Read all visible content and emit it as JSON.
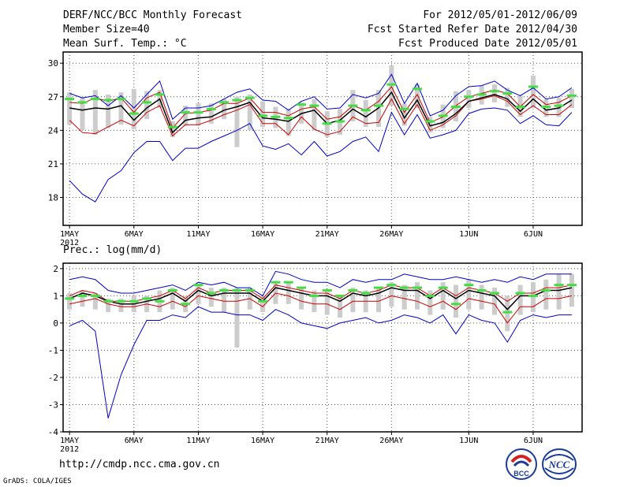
{
  "header": {
    "title": "DERF/NCC/BCC Monthly Forecast",
    "member_size": "Member Size=40",
    "variable": "Mean Surf. Temp.: °C",
    "period": "For 2012/05/01-2012/06/09",
    "start_date": "Fcst Started Refer Date 2012/04/30",
    "produced_date": "Fcst Produced Date 2012/05/01"
  },
  "footer": {
    "url": "http://cmdp.ncc.cma.gov.cn",
    "credit": "GrADS: COLA/IGES",
    "logo_bcc_text": "BCC",
    "logo_ncc_text": "NCC"
  },
  "colors": {
    "ensemble_mean": "#000000",
    "spread_inner": "#cc0000",
    "spread_outer": "#0000cc",
    "observed_marker": "#44dd44",
    "member_bar": "#cccccc",
    "grid": "#555555"
  },
  "chart_data": [
    {
      "type": "line",
      "title": "Mean Surf. Temp.: °C",
      "x_tick_labels": [
        "1MAY\n2012",
        "6MAY",
        "11MAY",
        "16MAY",
        "21MAY",
        "26MAY",
        "1JUN",
        "6JUN"
      ],
      "x_tick_days": [
        1,
        6,
        11,
        16,
        21,
        26,
        32,
        37
      ],
      "xlim": [
        0.5,
        40.8
      ],
      "ylim": [
        15.5,
        31
      ],
      "y_ticks": [
        18,
        21,
        24,
        27,
        30
      ],
      "grid": true,
      "days": [
        1,
        2,
        3,
        4,
        5,
        6,
        7,
        8,
        9,
        10,
        11,
        12,
        13,
        14,
        15,
        16,
        17,
        18,
        19,
        20,
        21,
        22,
        23,
        24,
        25,
        26,
        27,
        28,
        29,
        30,
        31,
        32,
        33,
        34,
        35,
        36,
        37,
        38,
        39,
        40
      ],
      "series": [
        {
          "name": "ensemble_max",
          "values": [
            27.3,
            26.9,
            27.1,
            26.2,
            27.1,
            26.0,
            27.2,
            28.4,
            25.0,
            26.0,
            26.0,
            26.2,
            26.8,
            27.4,
            27.7,
            26.7,
            26.6,
            25.8,
            26.6,
            27.0,
            25.9,
            26.0,
            27.2,
            26.9,
            27.3,
            29.0,
            26.4,
            28.2,
            25.3,
            25.8,
            27.1,
            27.9,
            28.0,
            28.4,
            27.6,
            27.1,
            27.8,
            26.8,
            27.0,
            27.8
          ]
        },
        {
          "name": "ensemble_p90",
          "values": [
            26.5,
            26.4,
            26.9,
            26.6,
            26.9,
            25.6,
            26.9,
            27.4,
            24.2,
            25.5,
            25.6,
            25.8,
            26.4,
            26.4,
            26.9,
            25.6,
            25.6,
            25.3,
            25.9,
            26.1,
            25.0,
            25.2,
            26.2,
            25.8,
            26.6,
            27.9,
            25.6,
            27.2,
            24.7,
            25.2,
            26.2,
            27.0,
            27.3,
            27.6,
            27.3,
            26.1,
            27.2,
            26.3,
            26.5,
            27.1
          ]
        },
        {
          "name": "ensemble_mean",
          "values": [
            26.0,
            25.8,
            26.0,
            25.9,
            26.2,
            24.9,
            26.0,
            26.8,
            23.8,
            24.9,
            25.1,
            25.2,
            25.8,
            26.1,
            26.5,
            25.1,
            25.0,
            24.8,
            25.5,
            25.8,
            24.6,
            24.9,
            25.9,
            25.2,
            26.0,
            27.4,
            25.1,
            26.7,
            24.4,
            24.7,
            25.5,
            26.6,
            26.9,
            27.2,
            26.8,
            25.7,
            26.8,
            25.8,
            26.0,
            26.7
          ]
        },
        {
          "name": "ensemble_p10",
          "values": [
            24.9,
            23.8,
            23.7,
            24.3,
            24.9,
            24.4,
            25.6,
            26.2,
            23.5,
            24.5,
            24.5,
            24.9,
            25.4,
            25.8,
            26.3,
            24.6,
            24.6,
            23.6,
            25.2,
            24.1,
            23.6,
            23.9,
            25.2,
            24.6,
            24.7,
            26.8,
            24.6,
            26.3,
            24.0,
            24.5,
            25.3,
            26.6,
            26.8,
            27.1,
            26.6,
            25.4,
            26.2,
            25.4,
            25.4,
            26.3
          ]
        },
        {
          "name": "ensemble_min",
          "values": [
            19.5,
            18.3,
            17.6,
            19.6,
            20.4,
            22.0,
            23.0,
            23.0,
            21.3,
            22.4,
            22.4,
            23.0,
            23.5,
            24.0,
            24.6,
            22.6,
            22.3,
            22.8,
            21.8,
            23.0,
            21.7,
            22.1,
            23.0,
            23.4,
            22.1,
            25.6,
            23.6,
            25.4,
            23.3,
            23.6,
            24.0,
            25.5,
            25.9,
            26.0,
            25.8,
            24.6,
            25.3,
            24.5,
            24.4,
            25.6
          ]
        },
        {
          "name": "observed",
          "values": [
            26.8,
            26.5,
            26.8,
            26.7,
            26.8,
            25.5,
            26.5,
            27.2,
            24.3,
            25.6,
            25.6,
            25.9,
            26.5,
            26.7,
            26.9,
            25.3,
            25.2,
            25.1,
            26.3,
            26.2,
            24.6,
            24.8,
            26.2,
            25.8,
            26.2,
            28.1,
            25.9,
            27.7,
            24.8,
            25.3,
            26.1,
            27.0,
            27.2,
            27.5,
            27.3,
            26.1,
            27.9,
            26.1,
            26.2,
            27.1
          ]
        },
        {
          "name": "member_spread_low",
          "values": [
            24.5,
            24.0,
            23.6,
            24.2,
            24.5,
            24.1,
            25.0,
            26.0,
            23.4,
            24.4,
            24.4,
            24.6,
            25.0,
            22.5,
            24.0,
            24.3,
            24.2,
            23.5,
            24.6,
            24.0,
            23.4,
            23.6,
            24.8,
            24.3,
            24.3,
            26.2,
            24.4,
            26.0,
            23.8,
            24.2,
            24.8,
            26.0,
            26.3,
            26.5,
            26.1,
            25.2,
            26.0,
            25.2,
            25.2,
            26.0
          ]
        },
        {
          "name": "member_spread_high",
          "values": [
            27.4,
            27.0,
            27.6,
            27.2,
            27.4,
            27.7,
            27.5,
            27.6,
            24.8,
            26.2,
            26.4,
            26.4,
            26.8,
            27.0,
            27.2,
            26.6,
            26.1,
            25.9,
            26.5,
            26.8,
            25.7,
            25.9,
            27.6,
            26.7,
            27.6,
            29.8,
            26.4,
            28.1,
            25.2,
            26.3,
            27.5,
            27.6,
            28.0,
            28.1,
            27.8,
            27.1,
            28.9,
            26.8,
            26.9,
            27.7
          ]
        }
      ]
    },
    {
      "type": "line",
      "title": "Prec.: log(mm/d)",
      "x_tick_labels": [
        "1MAY\n2012",
        "6MAY",
        "11MAY",
        "16MAY",
        "21MAY",
        "26MAY",
        "1JUN",
        "6JUN"
      ],
      "x_tick_days": [
        1,
        6,
        11,
        16,
        21,
        26,
        32,
        37
      ],
      "xlim": [
        0.5,
        40.8
      ],
      "ylim": [
        -4,
        2.2
      ],
      "y_ticks": [
        -4,
        -3,
        -2,
        -1,
        0,
        1,
        2
      ],
      "grid": true,
      "days": [
        1,
        2,
        3,
        4,
        5,
        6,
        7,
        8,
        9,
        10,
        11,
        12,
        13,
        14,
        15,
        16,
        17,
        18,
        19,
        20,
        21,
        22,
        23,
        24,
        25,
        26,
        27,
        28,
        29,
        30,
        31,
        32,
        33,
        34,
        35,
        36,
        37,
        38,
        39,
        40
      ],
      "series": [
        {
          "name": "ensemble_max",
          "values": [
            1.6,
            1.7,
            1.6,
            1.2,
            1.1,
            1.1,
            1.2,
            1.3,
            1.4,
            1.2,
            1.5,
            1.4,
            1.5,
            1.3,
            1.3,
            1.0,
            1.9,
            1.8,
            1.6,
            1.5,
            1.5,
            1.3,
            1.6,
            1.5,
            1.6,
            1.6,
            1.8,
            1.7,
            1.6,
            1.6,
            1.7,
            1.6,
            1.5,
            1.6,
            1.5,
            1.7,
            1.6,
            1.8,
            1.8,
            1.8
          ]
        },
        {
          "name": "ensemble_p90",
          "values": [
            1.0,
            1.2,
            1.1,
            0.8,
            0.8,
            0.8,
            0.9,
            1.0,
            1.2,
            0.9,
            1.3,
            1.1,
            1.2,
            1.2,
            1.2,
            0.9,
            1.4,
            1.3,
            1.2,
            1.1,
            1.1,
            0.9,
            1.2,
            1.1,
            1.2,
            1.4,
            1.3,
            1.3,
            1.0,
            1.3,
            1.0,
            1.3,
            1.2,
            1.1,
            0.8,
            1.1,
            1.1,
            1.3,
            1.3,
            1.4
          ]
        },
        {
          "name": "ensemble_mean",
          "values": [
            0.9,
            1.1,
            1.0,
            0.8,
            0.7,
            0.7,
            0.8,
            0.9,
            1.1,
            0.8,
            1.2,
            1.0,
            1.1,
            1.1,
            1.1,
            0.8,
            1.3,
            1.2,
            1.1,
            1.0,
            1.0,
            0.8,
            1.1,
            1.0,
            1.1,
            1.3,
            1.2,
            1.2,
            0.9,
            1.2,
            0.9,
            1.2,
            1.1,
            1.0,
            0.5,
            1.0,
            1.0,
            1.2,
            1.2,
            1.3
          ]
        },
        {
          "name": "ensemble_p10",
          "values": [
            0.7,
            0.8,
            0.9,
            0.7,
            0.6,
            0.6,
            0.7,
            0.6,
            0.8,
            0.6,
            1.0,
            0.9,
            0.8,
            0.8,
            0.9,
            0.6,
            1.1,
            1.0,
            0.8,
            0.7,
            0.7,
            0.5,
            0.8,
            0.8,
            0.8,
            1.0,
            0.9,
            0.8,
            0.6,
            0.8,
            0.5,
            0.9,
            0.8,
            0.7,
            0.0,
            0.6,
            0.6,
            0.9,
            0.9,
            1.0
          ]
        },
        {
          "name": "ensemble_min",
          "values": [
            -0.1,
            0.1,
            -0.3,
            -3.5,
            -1.9,
            -0.8,
            0.1,
            0.1,
            0.3,
            0.2,
            0.6,
            0.4,
            0.4,
            0.3,
            0.3,
            0.1,
            0.5,
            0.3,
            0.0,
            -0.1,
            -0.2,
            0.0,
            0.1,
            0.2,
            0.0,
            0.1,
            0.3,
            0.2,
            0.0,
            0.3,
            -0.4,
            0.3,
            0.1,
            0.0,
            -0.7,
            0.1,
            0.3,
            0.2,
            0.3,
            0.3
          ]
        },
        {
          "name": "observed",
          "values": [
            0.9,
            1.0,
            1.0,
            0.8,
            0.8,
            0.8,
            0.9,
            0.8,
            1.2,
            0.7,
            1.4,
            1.1,
            1.2,
            1.2,
            1.2,
            0.8,
            1.5,
            1.5,
            1.3,
            1.0,
            1.2,
            1.0,
            1.2,
            1.1,
            1.3,
            1.4,
            1.3,
            1.3,
            1.0,
            1.3,
            0.7,
            1.4,
            1.2,
            1.1,
            0.4,
            1.1,
            1.0,
            1.2,
            1.4,
            1.4
          ]
        },
        {
          "name": "member_spread_low",
          "values": [
            0.5,
            0.6,
            0.5,
            0.4,
            0.4,
            0.4,
            0.4,
            0.4,
            0.5,
            0.4,
            0.7,
            0.6,
            0.4,
            -0.9,
            0.5,
            0.4,
            0.7,
            0.7,
            0.5,
            0.4,
            0.3,
            0.2,
            0.4,
            0.4,
            0.4,
            0.6,
            0.5,
            0.5,
            0.3,
            0.5,
            0.2,
            0.5,
            0.5,
            0.3,
            -0.3,
            0.3,
            0.4,
            0.5,
            0.5,
            0.6
          ]
        },
        {
          "name": "member_spread_high",
          "values": [
            1.1,
            1.2,
            1.1,
            0.9,
            0.9,
            1.0,
            1.0,
            1.2,
            1.3,
            1.0,
            1.4,
            1.3,
            1.3,
            1.3,
            1.3,
            1.0,
            1.5,
            1.5,
            1.3,
            1.2,
            1.2,
            1.0,
            1.3,
            1.2,
            1.3,
            1.5,
            1.4,
            1.5,
            1.2,
            1.5,
            1.4,
            1.6,
            1.4,
            1.3,
            1.0,
            1.4,
            1.5,
            1.6,
            1.8,
            1.8
          ]
        }
      ]
    }
  ]
}
